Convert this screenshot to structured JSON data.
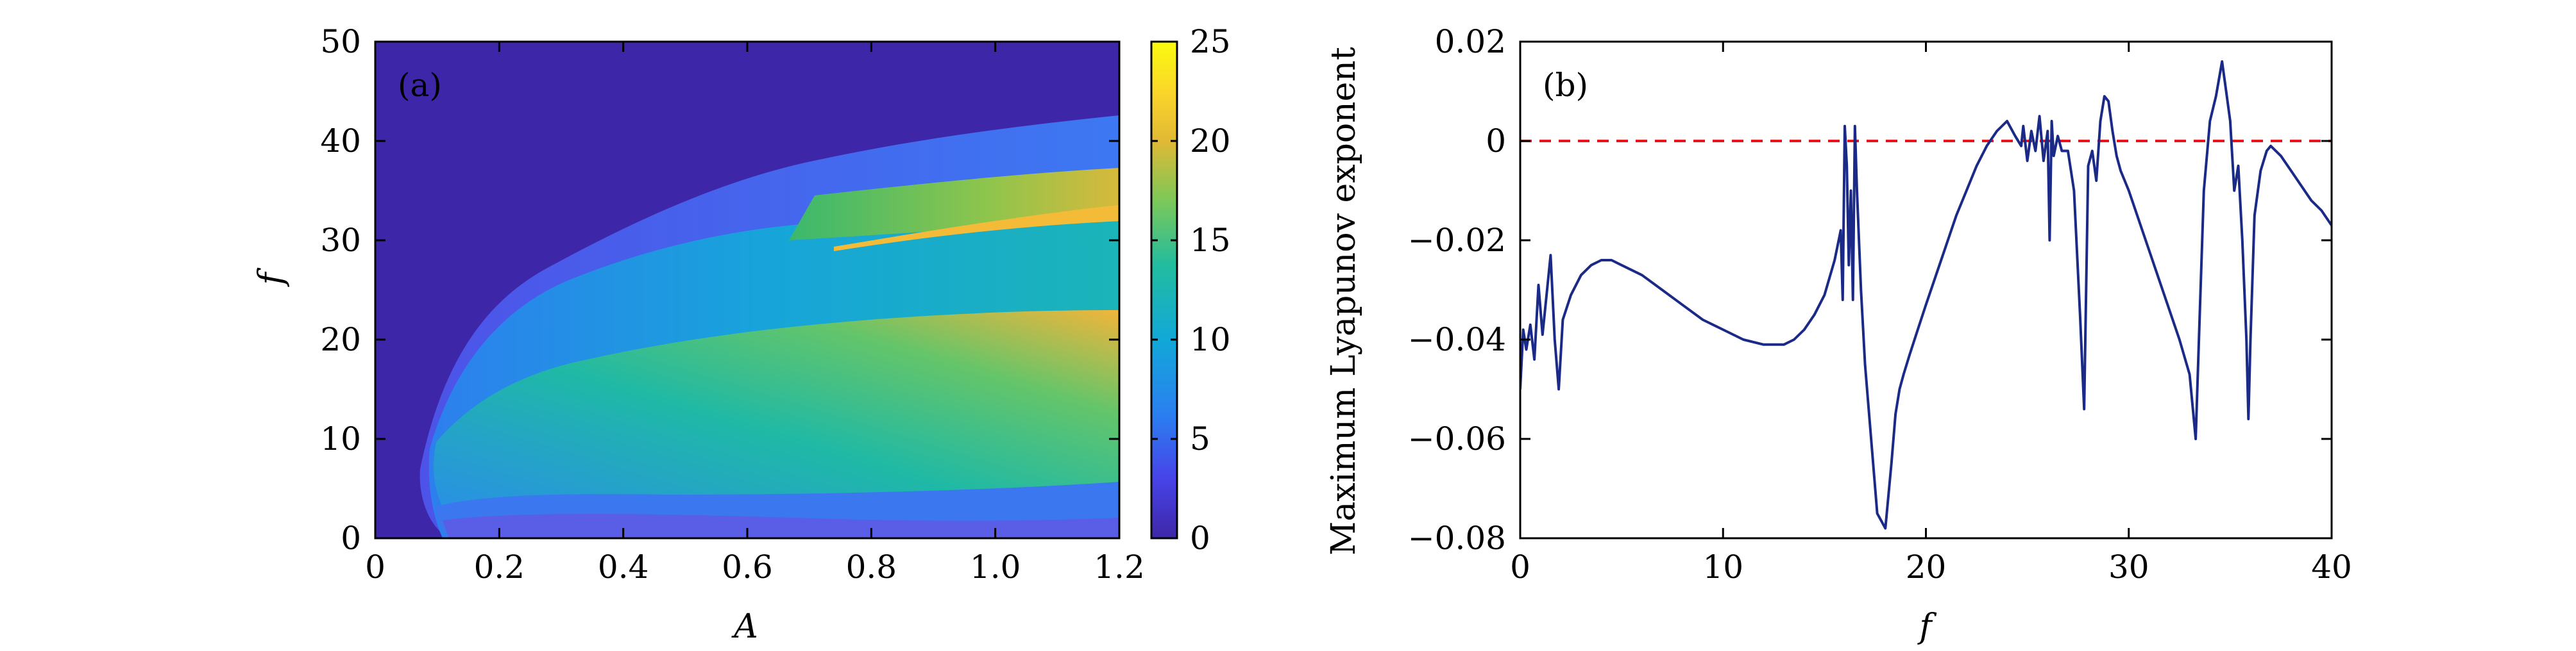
{
  "chart_data": [
    {
      "type": "heatmap",
      "panel_label": "(a)",
      "xlabel": "A",
      "ylabel": "f",
      "xlim": [
        0,
        1.2
      ],
      "ylim": [
        0,
        50
      ],
      "xticks": [
        "0",
        "0.2",
        "0.4",
        "0.6",
        "0.8",
        "1.0",
        "1.2"
      ],
      "xtick_values": [
        0,
        0.2,
        0.4,
        0.6,
        0.8,
        1.0,
        1.2
      ],
      "yticks": [
        "0",
        "10",
        "20",
        "30",
        "40",
        "50"
      ],
      "ytick_values": [
        0,
        10,
        20,
        30,
        40,
        50
      ],
      "colorbar": {
        "min": 0,
        "max": 25,
        "ticks": [
          "0",
          "5",
          "10",
          "15",
          "20",
          "25"
        ],
        "tick_values": [
          0,
          5,
          10,
          15,
          20,
          25
        ],
        "colormap": [
          "#3e26a8",
          "#4744e8",
          "#2a7ff0",
          "#12a8d8",
          "#22bc9f",
          "#7cc858",
          "#e1b935",
          "#fbd62a",
          "#f9fb0e"
        ]
      },
      "regions": [
        {
          "name": "background",
          "value": 0
        },
        {
          "name": "band-top",
          "A": [
            0.6,
            1.2
          ],
          "f": [
            29,
            40
          ],
          "value": 17
        },
        {
          "name": "band-thin-orange",
          "A": [
            0.8,
            1.2
          ],
          "f": [
            30,
            33
          ],
          "value": 21
        },
        {
          "name": "band-middle",
          "A": [
            0.2,
            1.2
          ],
          "f": [
            14,
            30
          ],
          "value": 10
        },
        {
          "name": "band-lower",
          "A": [
            0.2,
            1.2
          ],
          "f": [
            5,
            22
          ],
          "value": 16
        },
        {
          "name": "band-base",
          "A": [
            0.1,
            1.2
          ],
          "f": [
            1,
            5
          ],
          "value": 6
        }
      ]
    },
    {
      "type": "line",
      "panel_label": "(b)",
      "xlabel": "f",
      "ylabel": "Maximum Lyapunov exponent",
      "xlim": [
        0,
        40
      ],
      "ylim": [
        -0.08,
        0.02
      ],
      "xticks": [
        "0",
        "10",
        "20",
        "30",
        "40"
      ],
      "xtick_values": [
        0,
        10,
        20,
        30,
        40
      ],
      "yticks": [
        "0.02",
        "0",
        "−0.02",
        "−0.04",
        "−0.06",
        "−0.08"
      ],
      "ytick_values": [
        0.02,
        0,
        -0.02,
        -0.04,
        -0.06,
        -0.08
      ],
      "reference_line": {
        "y": 0,
        "color": "#e8141c",
        "style": "dashed"
      },
      "series": [
        {
          "name": "MLE",
          "color": "#1a2a86",
          "x": [
            0,
            0.15,
            0.3,
            0.5,
            0.7,
            0.9,
            1.1,
            1.3,
            1.5,
            1.7,
            1.9,
            2.1,
            2.5,
            3,
            3.5,
            4,
            4.5,
            5,
            6,
            7,
            8,
            9,
            10,
            11,
            12,
            13,
            13.5,
            14,
            14.5,
            15,
            15.5,
            15.8,
            15.9,
            16,
            16.1,
            16.2,
            16.3,
            16.4,
            16.5,
            16.6,
            16.8,
            17,
            17.3,
            17.6,
            18,
            18.3,
            18.5,
            18.7,
            18.9,
            19.2,
            19.6,
            20,
            20.5,
            21,
            21.5,
            22,
            22.5,
            23,
            23.5,
            24,
            24.4,
            24.7,
            24.8,
            25,
            25.2,
            25.4,
            25.6,
            25.8,
            26,
            26.1,
            26.2,
            26.3,
            26.5,
            26.7,
            27,
            27.3,
            27.6,
            27.8,
            27.9,
            28,
            28.2,
            28.4,
            28.6,
            28.8,
            29,
            29.2,
            29.4,
            29.6,
            30,
            30.5,
            31,
            31.5,
            32,
            32.5,
            33,
            33.3,
            33.5,
            33.7,
            34,
            34.3,
            34.6,
            34.8,
            35,
            35.2,
            35.4,
            35.6,
            35.8,
            35.9,
            36,
            36.2,
            36.5,
            36.8,
            37,
            37.5,
            38,
            38.5,
            39,
            39.5,
            40
          ],
          "y": [
            -0.05,
            -0.038,
            -0.042,
            -0.037,
            -0.044,
            -0.029,
            -0.039,
            -0.031,
            -0.023,
            -0.04,
            -0.05,
            -0.036,
            -0.031,
            -0.027,
            -0.025,
            -0.024,
            -0.024,
            -0.025,
            -0.027,
            -0.03,
            -0.033,
            -0.036,
            -0.038,
            -0.04,
            -0.041,
            -0.041,
            -0.04,
            -0.038,
            -0.035,
            -0.031,
            -0.024,
            -0.018,
            -0.032,
            0.003,
            -0.005,
            -0.025,
            -0.01,
            -0.032,
            0.003,
            -0.01,
            -0.03,
            -0.045,
            -0.06,
            -0.075,
            -0.078,
            -0.065,
            -0.055,
            -0.05,
            -0.047,
            -0.043,
            -0.038,
            -0.033,
            -0.027,
            -0.021,
            -0.015,
            -0.01,
            -0.005,
            -0.001,
            0.002,
            0.004,
            0.001,
            -0.001,
            0.003,
            -0.004,
            0.002,
            -0.002,
            0.005,
            -0.004,
            0.002,
            -0.02,
            0.004,
            -0.003,
            0.001,
            -0.002,
            -0.002,
            -0.01,
            -0.035,
            -0.054,
            -0.03,
            -0.005,
            -0.002,
            -0.008,
            0.004,
            0.009,
            0.008,
            0.002,
            -0.003,
            -0.006,
            -0.01,
            -0.016,
            -0.022,
            -0.028,
            -0.034,
            -0.04,
            -0.047,
            -0.06,
            -0.035,
            -0.01,
            0.004,
            0.009,
            0.016,
            0.01,
            0.004,
            -0.01,
            -0.005,
            -0.02,
            -0.04,
            -0.056,
            -0.04,
            -0.015,
            -0.006,
            -0.002,
            -0.001,
            -0.003,
            -0.006,
            -0.009,
            -0.012,
            -0.014,
            -0.017
          ]
        }
      ]
    }
  ]
}
